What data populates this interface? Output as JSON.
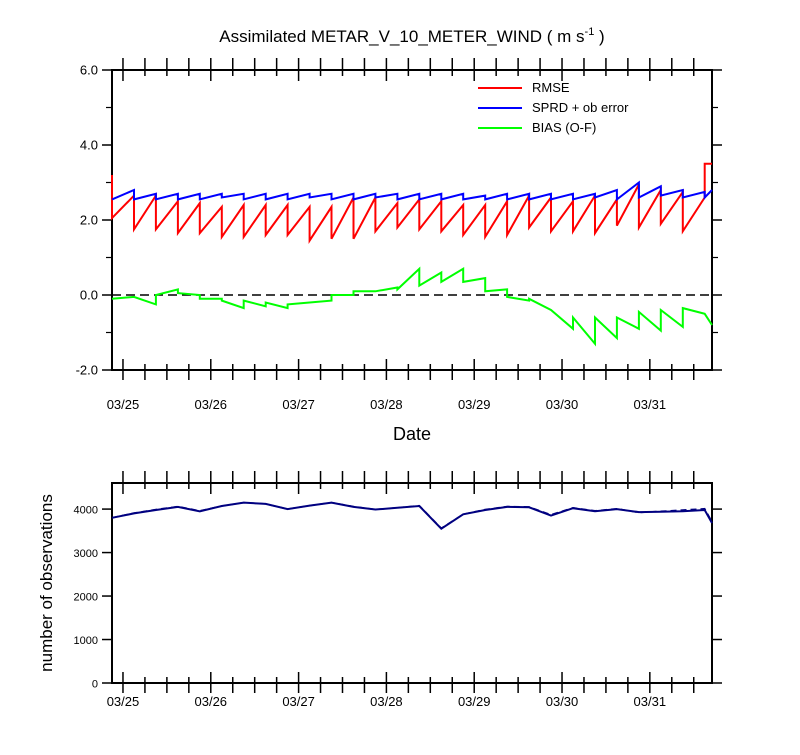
{
  "title_main": "Assimilated METAR_V_10_METER_WIND ( m s",
  "title_sup": "-1",
  "title_close": " )",
  "chart_data": [
    {
      "type": "line",
      "xlabel": "Date",
      "ylabel": "",
      "xlim": [
        0,
        6.833
      ],
      "ylim": [
        -2.0,
        6.0
      ],
      "y_tick_labels": [
        "-2.0",
        "0.0",
        "2.0",
        "4.0",
        "6.0"
      ],
      "x_tick_labels": [
        "03/25",
        "03/26",
        "03/27",
        "03/28",
        "03/29",
        "03/30",
        "03/31"
      ],
      "x_tick_positions_days": [
        0.125,
        1.125,
        2.125,
        3.125,
        4.125,
        5.125,
        6.125
      ],
      "reference_line": {
        "y": 0.0,
        "style": "dashed"
      },
      "legend": {
        "placement": "top-right",
        "entries": [
          "RMSE",
          "SPRD + ob error",
          "BIAS (O-F)"
        ]
      },
      "series": [
        {
          "name": "RMSE",
          "color": "#ff0000",
          "x": [
            0,
            0,
            0.25,
            0.25,
            0.5,
            0.5,
            0.75,
            0.75,
            1.0,
            1.0,
            1.25,
            1.25,
            1.5,
            1.5,
            1.75,
            1.75,
            2.0,
            2.0,
            2.25,
            2.25,
            2.5,
            2.5,
            2.75,
            2.75,
            3.0,
            3.0,
            3.25,
            3.25,
            3.5,
            3.5,
            3.75,
            3.75,
            4.0,
            4.0,
            4.25,
            4.25,
            4.5,
            4.5,
            4.75,
            4.75,
            5.0,
            5.0,
            5.25,
            5.25,
            5.5,
            5.5,
            5.75,
            5.75,
            6.0,
            6.0,
            6.25,
            6.25,
            6.5,
            6.5,
            6.75,
            6.75,
            6.833
          ],
          "values": [
            3.2,
            2.05,
            2.65,
            1.75,
            2.65,
            1.75,
            2.5,
            1.65,
            2.45,
            1.65,
            2.35,
            1.55,
            2.4,
            1.55,
            2.4,
            1.6,
            2.4,
            1.6,
            2.35,
            1.45,
            2.35,
            1.5,
            2.6,
            1.5,
            2.6,
            1.7,
            2.45,
            1.8,
            2.55,
            1.75,
            2.5,
            1.7,
            2.4,
            1.6,
            2.4,
            1.55,
            2.5,
            1.6,
            2.65,
            1.8,
            2.6,
            1.7,
            2.5,
            1.7,
            2.65,
            1.65,
            2.55,
            1.85,
            2.95,
            1.8,
            2.8,
            1.9,
            2.75,
            1.7,
            2.6,
            3.5,
            3.5
          ]
        },
        {
          "name": "SPRD + ob error",
          "color": "#0000ff",
          "x": [
            0,
            0.25,
            0.25,
            0.5,
            0.5,
            0.75,
            0.75,
            1.0,
            1.0,
            1.25,
            1.25,
            1.5,
            1.5,
            1.75,
            1.75,
            2.0,
            2.0,
            2.25,
            2.25,
            2.5,
            2.5,
            2.75,
            2.75,
            3.0,
            3.0,
            3.25,
            3.25,
            3.5,
            3.5,
            3.75,
            3.75,
            4.0,
            4.0,
            4.25,
            4.25,
            4.5,
            4.5,
            4.75,
            4.75,
            5.0,
            5.0,
            5.25,
            5.25,
            5.5,
            5.5,
            5.75,
            5.75,
            6.0,
            6.0,
            6.25,
            6.25,
            6.5,
            6.5,
            6.75,
            6.75,
            6.833
          ],
          "values": [
            2.55,
            2.8,
            2.55,
            2.7,
            2.55,
            2.7,
            2.55,
            2.7,
            2.55,
            2.7,
            2.6,
            2.7,
            2.55,
            2.7,
            2.55,
            2.7,
            2.55,
            2.7,
            2.6,
            2.7,
            2.55,
            2.7,
            2.55,
            2.7,
            2.6,
            2.7,
            2.55,
            2.7,
            2.55,
            2.7,
            2.55,
            2.7,
            2.55,
            2.65,
            2.55,
            2.7,
            2.55,
            2.7,
            2.55,
            2.7,
            2.55,
            2.7,
            2.55,
            2.7,
            2.6,
            2.8,
            2.55,
            3.0,
            2.6,
            2.9,
            2.65,
            2.8,
            2.6,
            2.75,
            2.6,
            2.8
          ]
        },
        {
          "name": "BIAS (O-F)",
          "color": "#00ff00",
          "x": [
            0,
            0.25,
            0.25,
            0.5,
            0.5,
            0.75,
            0.75,
            1.0,
            1.0,
            1.25,
            1.25,
            1.5,
            1.5,
            1.75,
            1.75,
            2.0,
            2.0,
            2.25,
            2.25,
            2.5,
            2.5,
            2.75,
            2.75,
            3.0,
            3.0,
            3.25,
            3.25,
            3.5,
            3.5,
            3.75,
            3.75,
            4.0,
            4.0,
            4.25,
            4.25,
            4.5,
            4.5,
            4.75,
            4.75,
            5.0,
            5.0,
            5.25,
            5.25,
            5.5,
            5.5,
            5.75,
            5.75,
            6.0,
            6.0,
            6.25,
            6.25,
            6.5,
            6.5,
            6.75,
            6.75,
            6.833
          ],
          "values": [
            -0.1,
            -0.05,
            -0.05,
            -0.25,
            0.0,
            0.15,
            0.05,
            0.0,
            -0.1,
            -0.1,
            -0.15,
            -0.35,
            -0.15,
            -0.3,
            -0.2,
            -0.35,
            -0.25,
            -0.2,
            -0.2,
            -0.15,
            0.0,
            0.0,
            0.1,
            0.1,
            0.1,
            0.2,
            0.15,
            0.7,
            0.25,
            0.6,
            0.35,
            0.7,
            0.35,
            0.45,
            0.1,
            0.15,
            -0.05,
            -0.15,
            -0.1,
            -0.4,
            -0.4,
            -0.9,
            -0.6,
            -1.3,
            -0.6,
            -1.15,
            -0.6,
            -0.9,
            -0.45,
            -0.95,
            -0.4,
            -0.85,
            -0.35,
            -0.5,
            -0.5,
            -0.8
          ]
        }
      ]
    },
    {
      "type": "line",
      "xlabel": "",
      "ylabel": "number of observations",
      "xlim": [
        0,
        6.833
      ],
      "ylim": [
        0,
        4600
      ],
      "y_tick_labels": [
        "0",
        "1000",
        "2000",
        "3000",
        "4000"
      ],
      "x_tick_labels": [
        "03/25",
        "03/26",
        "03/27",
        "03/28",
        "03/29",
        "03/30",
        "03/31"
      ],
      "x_tick_positions_days": [
        0.125,
        1.125,
        2.125,
        3.125,
        4.125,
        5.125,
        6.125
      ],
      "series": [
        {
          "color": "#000080",
          "dash": "solid",
          "x": [
            0,
            0.25,
            0.5,
            0.75,
            1.0,
            1.25,
            1.5,
            1.75,
            2.0,
            2.25,
            2.5,
            2.75,
            3.0,
            3.25,
            3.5,
            3.75,
            4.0,
            4.25,
            4.5,
            4.75,
            5.0,
            5.25,
            5.5,
            5.75,
            6.0,
            6.25,
            6.5,
            6.75,
            6.833
          ],
          "values": [
            3800,
            3900,
            3980,
            4050,
            3950,
            4070,
            4150,
            4120,
            4000,
            4080,
            4150,
            4050,
            3990,
            4030,
            4070,
            3550,
            3880,
            3980,
            4050,
            4040,
            3850,
            4020,
            3950,
            4000,
            3930,
            3940,
            3950,
            3980,
            3680
          ]
        },
        {
          "color": "#000080",
          "dash": "dashed",
          "x": [
            0,
            0.25,
            0.5,
            0.75,
            1.0,
            1.25,
            1.5,
            1.75,
            2.0,
            2.25,
            2.5,
            2.75,
            3.0,
            3.25,
            3.5,
            3.75,
            4.0,
            4.25,
            4.5,
            4.75,
            5.0,
            5.25,
            5.5,
            5.75,
            6.0,
            6.25,
            6.5,
            6.75,
            6.833
          ],
          "values": [
            3800,
            3910,
            3990,
            4060,
            3960,
            4070,
            4150,
            4120,
            4000,
            4080,
            4150,
            4060,
            3990,
            4030,
            4080,
            3560,
            3880,
            3990,
            4060,
            4050,
            3870,
            4030,
            3960,
            4010,
            3920,
            3950,
            3980,
            4010,
            3710
          ]
        }
      ]
    }
  ]
}
